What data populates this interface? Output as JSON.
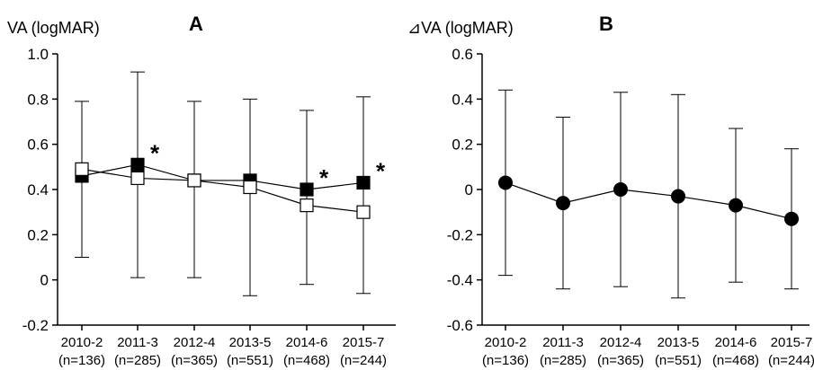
{
  "chart_data": [
    {
      "panel": "A",
      "type": "line",
      "ylabel": "VA (logMAR)",
      "ylim": [
        -0.2,
        1.0
      ],
      "yticks": [
        "1.0",
        "0.8",
        "0.6",
        "0.4",
        "0.2",
        "0",
        "-0.2"
      ],
      "ytick_values": [
        1.0,
        0.8,
        0.6,
        0.4,
        0.2,
        0,
        -0.2
      ],
      "categories": [
        "2010-2",
        "2011-3",
        "2012-4",
        "2013-5",
        "2014-6",
        "2015-7"
      ],
      "category_n": [
        "(n=136)",
        "(n=285)",
        "(n=365)",
        "(n=551)",
        "(n=468)",
        "(n=244)"
      ],
      "series": [
        {
          "marker": "filled-square",
          "values": [
            0.46,
            0.51,
            0.44,
            0.44,
            0.4,
            0.43
          ],
          "significant": [
            false,
            true,
            false,
            false,
            true,
            true
          ]
        },
        {
          "marker": "open-square",
          "values": [
            0.49,
            0.45,
            0.44,
            0.41,
            0.33,
            0.3
          ]
        }
      ],
      "error_bars": {
        "upper": [
          0.79,
          0.92,
          0.79,
          0.8,
          0.75,
          0.81
        ],
        "lower": [
          0.1,
          0.01,
          0.01,
          -0.07,
          -0.02,
          -0.06
        ]
      },
      "significance_marker": "*",
      "grid": false
    },
    {
      "panel": "B",
      "type": "line",
      "ylabel": "⊿VA (logMAR)",
      "ylim": [
        -0.6,
        0.6
      ],
      "yticks": [
        "0.6",
        "0.4",
        "0.2",
        "0",
        "-0.2",
        "-0.4",
        "-0.6"
      ],
      "ytick_values": [
        0.6,
        0.4,
        0.2,
        0,
        -0.2,
        -0.4,
        -0.6
      ],
      "categories": [
        "2010-2",
        "2011-3",
        "2012-4",
        "2013-5",
        "2014-6",
        "2015-7"
      ],
      "category_n": [
        "(n=136)",
        "(n=285)",
        "(n=365)",
        "(n=551)",
        "(n=468)",
        "(n=244)"
      ],
      "series": [
        {
          "marker": "filled-circle",
          "values": [
            0.03,
            -0.06,
            0.0,
            -0.03,
            -0.07,
            -0.13
          ]
        }
      ],
      "error_bars": {
        "upper": [
          0.44,
          0.32,
          0.43,
          0.42,
          0.27,
          0.18
        ],
        "lower": [
          -0.38,
          -0.44,
          -0.43,
          -0.48,
          -0.41,
          -0.44
        ]
      },
      "grid": false
    }
  ]
}
